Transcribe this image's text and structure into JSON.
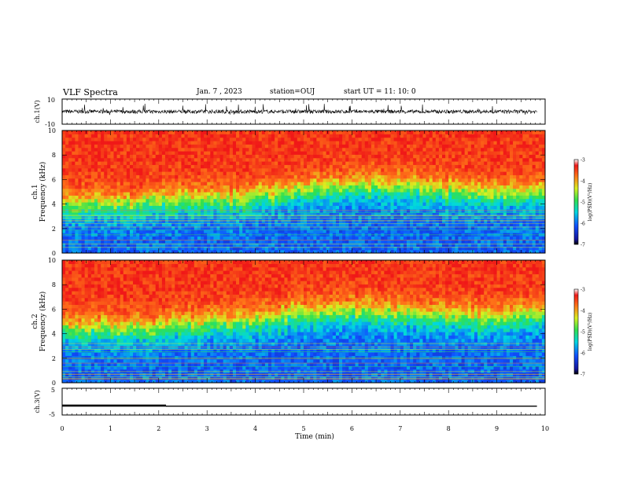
{
  "header": {
    "title": "VLF Spectra",
    "date": "Jan. 7 , 2023",
    "station": "station=OUJ",
    "start": "start UT =  11: 10: 0"
  },
  "chart_data": [
    {
      "type": "line",
      "panel": "ch1-waveform",
      "ylabel": "ch.1(V)",
      "ylim": [
        -10,
        10
      ],
      "yticks": [
        "10",
        "-10"
      ],
      "xlim": [
        0,
        9.83
      ],
      "baseline": 0,
      "amplitude": 1.5
    },
    {
      "type": "heatmap",
      "panel": "ch1-spectrogram",
      "ylabel_line1": "ch.1",
      "ylabel_line2": "Frequency (kHz)",
      "ylim": [
        0,
        10
      ],
      "yticks": [
        "0",
        "2",
        "4",
        "6",
        "8",
        "10"
      ],
      "xlim": [
        0,
        9.83
      ],
      "band_edges": [
        {
          "t": 0.0,
          "f": 3.9
        },
        {
          "t": 1.4,
          "f": 3.9
        },
        {
          "t": 2.3,
          "f": 4.2
        },
        {
          "t": 3.5,
          "f": 4.3
        },
        {
          "t": 4.8,
          "f": 5.0
        },
        {
          "t": 6.0,
          "f": 5.4
        },
        {
          "t": 7.0,
          "f": 5.3
        },
        {
          "t": 8.5,
          "f": 4.8
        },
        {
          "t": 9.83,
          "f": 4.7
        }
      ],
      "colorbar": {
        "label": "log(PSD)(V²/Hz)",
        "range": [
          -7,
          -3
        ],
        "ticks": [
          "-3",
          "-4",
          "-5",
          "-6",
          "-7"
        ]
      }
    },
    {
      "type": "heatmap",
      "panel": "ch2-spectrogram",
      "ylabel_line1": "ch.2",
      "ylabel_line2": "Frequency (kHz)",
      "ylim": [
        0,
        10
      ],
      "yticks": [
        "0",
        "2",
        "4",
        "6",
        "8",
        "10"
      ],
      "xlim": [
        0,
        9.83
      ],
      "band_edges": [
        {
          "t": 0.0,
          "f": 4.4
        },
        {
          "t": 1.4,
          "f": 4.3
        },
        {
          "t": 2.3,
          "f": 4.6
        },
        {
          "t": 3.5,
          "f": 4.8
        },
        {
          "t": 4.8,
          "f": 5.5
        },
        {
          "t": 6.0,
          "f": 5.8
        },
        {
          "t": 7.0,
          "f": 5.6
        },
        {
          "t": 8.5,
          "f": 5.2
        },
        {
          "t": 9.83,
          "f": 5.4
        }
      ],
      "colorbar": {
        "label": "log(PSD)(V²/Hz)",
        "range": [
          -7,
          -3
        ],
        "ticks": [
          "-3",
          "-4",
          "-5",
          "-6",
          "-7"
        ]
      }
    },
    {
      "type": "line",
      "panel": "ch3-voltage",
      "ylabel": "ch.3(V)",
      "ylim": [
        -5,
        5
      ],
      "yticks": [
        "5",
        "-5"
      ],
      "x": [
        0,
        2.15,
        2.15,
        9.83
      ],
      "y": [
        -1.5,
        -1.5,
        -1.7,
        -1.7
      ],
      "xlabel": "Time (min)",
      "xlim": [
        0,
        10
      ],
      "xticks": [
        "0",
        "1",
        "2",
        "3",
        "4",
        "5",
        "6",
        "7",
        "8",
        "9",
        "10"
      ]
    }
  ]
}
